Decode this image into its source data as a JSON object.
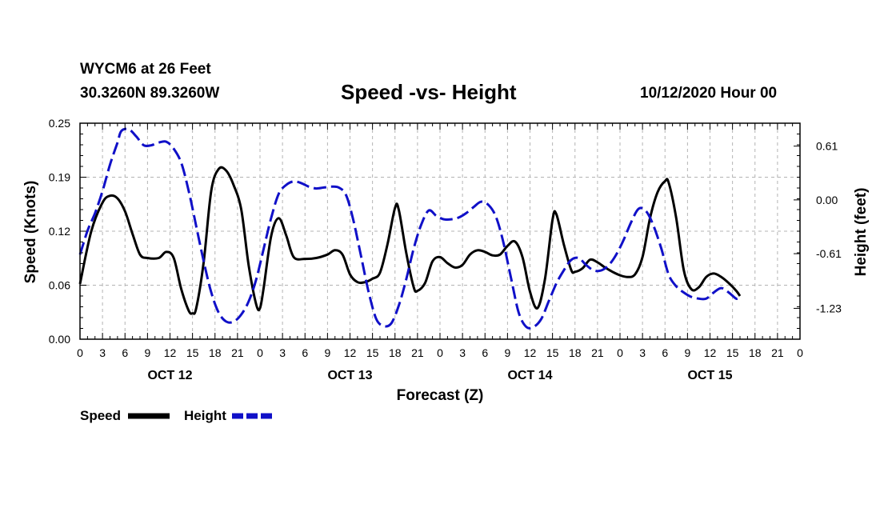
{
  "header": {
    "station": "WYCM6 at 26 Feet",
    "coords": "30.3260N 89.3260W",
    "title": "Speed -vs- Height",
    "run_time": "10/12/2020 Hour 00"
  },
  "colors": {
    "speed": "#000000",
    "height": "#1010c8",
    "grid": "#b4b4b4"
  },
  "chart_data": {
    "type": "line",
    "title": "Speed -vs- Height",
    "xlabel": "Forecast (Z)",
    "ylabel": "Speed (Knots)",
    "ylabel_right": "Height (feet)",
    "x_range_hours": [
      0,
      96
    ],
    "ylim": [
      0,
      0.25
    ],
    "ylim_right": [
      -1.58,
      0.87
    ],
    "yticks": [
      "0.00",
      "0.06",
      "0.12",
      "0.19",
      "0.25"
    ],
    "yticks_right": [
      "0.61",
      "0.00",
      "-0.61",
      "-1.23"
    ],
    "ytick_values_right": [
      0.61,
      0.0,
      -0.61,
      -1.23
    ],
    "xtick_labels": [
      "0",
      "3",
      "6",
      "9",
      "12",
      "15",
      "18",
      "21",
      "0",
      "3",
      "6",
      "9",
      "12",
      "15",
      "18",
      "21",
      "0",
      "3",
      "6",
      "9",
      "12",
      "15",
      "18",
      "21",
      "0",
      "3",
      "6",
      "9",
      "12",
      "15",
      "18",
      "21",
      "0"
    ],
    "date_labels": [
      {
        "label": "OCT 12",
        "hour": 12
      },
      {
        "label": "OCT 13",
        "hour": 36
      },
      {
        "label": "OCT 14",
        "hour": 60
      },
      {
        "label": "OCT 15",
        "hour": 84
      }
    ],
    "grid": true,
    "legend_position": "bottom-left",
    "series": [
      {
        "name": "Speed",
        "axis": "left",
        "style": "solid",
        "points": [
          [
            0,
            0.064
          ],
          [
            1.5,
            0.125
          ],
          [
            3,
            0.158
          ],
          [
            4,
            0.166
          ],
          [
            5,
            0.163
          ],
          [
            6,
            0.148
          ],
          [
            7,
            0.122
          ],
          [
            8,
            0.098
          ],
          [
            9,
            0.094
          ],
          [
            10.5,
            0.094
          ],
          [
            11.5,
            0.101
          ],
          [
            12.5,
            0.094
          ],
          [
            13.5,
            0.058
          ],
          [
            14.5,
            0.033
          ],
          [
            15,
            0.03
          ],
          [
            15.5,
            0.036
          ],
          [
            16.5,
            0.09
          ],
          [
            17.5,
            0.172
          ],
          [
            18.5,
            0.197
          ],
          [
            19.5,
            0.195
          ],
          [
            20.5,
            0.178
          ],
          [
            21.5,
            0.15
          ],
          [
            22.5,
            0.085
          ],
          [
            23.5,
            0.04
          ],
          [
            24,
            0.036
          ],
          [
            24.5,
            0.06
          ],
          [
            25.5,
            0.12
          ],
          [
            26.5,
            0.14
          ],
          [
            27.5,
            0.12
          ],
          [
            28.5,
            0.095
          ],
          [
            30,
            0.093
          ],
          [
            31.5,
            0.094
          ],
          [
            33,
            0.098
          ],
          [
            34,
            0.103
          ],
          [
            35,
            0.098
          ],
          [
            36,
            0.075
          ],
          [
            37,
            0.066
          ],
          [
            38,
            0.066
          ],
          [
            39,
            0.07
          ],
          [
            40,
            0.077
          ],
          [
            41,
            0.11
          ],
          [
            42,
            0.152
          ],
          [
            42.5,
            0.15
          ],
          [
            43.5,
            0.1
          ],
          [
            44.5,
            0.06
          ],
          [
            45,
            0.056
          ],
          [
            46,
            0.065
          ],
          [
            47,
            0.09
          ],
          [
            48,
            0.095
          ],
          [
            49,
            0.088
          ],
          [
            50,
            0.083
          ],
          [
            51,
            0.086
          ],
          [
            52,
            0.098
          ],
          [
            53,
            0.103
          ],
          [
            54,
            0.101
          ],
          [
            55,
            0.097
          ],
          [
            56,
            0.098
          ],
          [
            57,
            0.108
          ],
          [
            58,
            0.113
          ],
          [
            59,
            0.095
          ],
          [
            60,
            0.055
          ],
          [
            61,
            0.036
          ],
          [
            62,
            0.07
          ],
          [
            63,
            0.138
          ],
          [
            63.5,
            0.145
          ],
          [
            64.5,
            0.11
          ],
          [
            65.5,
            0.08
          ],
          [
            66,
            0.078
          ],
          [
            67,
            0.082
          ],
          [
            68,
            0.092
          ],
          [
            69,
            0.089
          ],
          [
            70,
            0.083
          ],
          [
            71,
            0.078
          ],
          [
            72,
            0.074
          ],
          [
            73,
            0.072
          ],
          [
            74,
            0.075
          ],
          [
            75,
            0.095
          ],
          [
            76,
            0.14
          ],
          [
            77,
            0.17
          ],
          [
            78,
            0.183
          ],
          [
            78.5,
            0.181
          ],
          [
            79.5,
            0.14
          ],
          [
            80.5,
            0.08
          ],
          [
            81.5,
            0.058
          ],
          [
            82.5,
            0.06
          ],
          [
            83.5,
            0.072
          ],
          [
            84.5,
            0.076
          ],
          [
            85.5,
            0.072
          ],
          [
            86.5,
            0.065
          ],
          [
            87.5,
            0.056
          ],
          [
            88,
            0.05
          ]
        ]
      },
      {
        "name": "Height",
        "axis": "right",
        "style": "dashed",
        "points": [
          [
            0,
            -0.62
          ],
          [
            1,
            -0.35
          ],
          [
            2,
            -0.15
          ],
          [
            3,
            0.1
          ],
          [
            4,
            0.4
          ],
          [
            5,
            0.65
          ],
          [
            5.5,
            0.78
          ],
          [
            6.5,
            0.8
          ],
          [
            7.5,
            0.72
          ],
          [
            8.5,
            0.62
          ],
          [
            9.5,
            0.62
          ],
          [
            10.5,
            0.65
          ],
          [
            11.5,
            0.66
          ],
          [
            12.5,
            0.58
          ],
          [
            13.5,
            0.42
          ],
          [
            14.5,
            0.1
          ],
          [
            15.5,
            -0.3
          ],
          [
            16.5,
            -0.7
          ],
          [
            17.5,
            -1.05
          ],
          [
            18.5,
            -1.28
          ],
          [
            19.5,
            -1.38
          ],
          [
            20.5,
            -1.38
          ],
          [
            21.5,
            -1.3
          ],
          [
            22.5,
            -1.15
          ],
          [
            23.5,
            -0.9
          ],
          [
            24.5,
            -0.55
          ],
          [
            25.5,
            -0.2
          ],
          [
            26.5,
            0.07
          ],
          [
            27.5,
            0.17
          ],
          [
            28.5,
            0.21
          ],
          [
            29.5,
            0.19
          ],
          [
            30.5,
            0.15
          ],
          [
            31.5,
            0.13
          ],
          [
            32.5,
            0.14
          ],
          [
            33.5,
            0.15
          ],
          [
            34.5,
            0.14
          ],
          [
            35.5,
            0.05
          ],
          [
            36.5,
            -0.25
          ],
          [
            37.5,
            -0.65
          ],
          [
            38.5,
            -1.05
          ],
          [
            39.5,
            -1.35
          ],
          [
            40.5,
            -1.43
          ],
          [
            41.5,
            -1.4
          ],
          [
            42.5,
            -1.2
          ],
          [
            43.5,
            -0.9
          ],
          [
            44.5,
            -0.55
          ],
          [
            45.5,
            -0.28
          ],
          [
            46.5,
            -0.12
          ],
          [
            47.5,
            -0.18
          ],
          [
            48.5,
            -0.22
          ],
          [
            49.5,
            -0.22
          ],
          [
            50.5,
            -0.2
          ],
          [
            51.5,
            -0.15
          ],
          [
            52.5,
            -0.08
          ],
          [
            53.5,
            -0.02
          ],
          [
            54.5,
            -0.06
          ],
          [
            55.5,
            -0.2
          ],
          [
            56.5,
            -0.5
          ],
          [
            57.5,
            -0.9
          ],
          [
            58.5,
            -1.28
          ],
          [
            59.5,
            -1.44
          ],
          [
            60.5,
            -1.44
          ],
          [
            61.5,
            -1.35
          ],
          [
            62.5,
            -1.15
          ],
          [
            63.5,
            -0.95
          ],
          [
            64.5,
            -0.8
          ],
          [
            65.5,
            -0.68
          ],
          [
            66.5,
            -0.66
          ],
          [
            67.5,
            -0.74
          ],
          [
            68.5,
            -0.8
          ],
          [
            69.5,
            -0.8
          ],
          [
            70.5,
            -0.74
          ],
          [
            71.5,
            -0.62
          ],
          [
            72.5,
            -0.45
          ],
          [
            73.5,
            -0.25
          ],
          [
            74.5,
            -0.1
          ],
          [
            75.5,
            -0.13
          ],
          [
            76.5,
            -0.3
          ],
          [
            77.5,
            -0.55
          ],
          [
            78.5,
            -0.85
          ],
          [
            79.5,
            -0.98
          ],
          [
            80.5,
            -1.05
          ],
          [
            81.5,
            -1.1
          ],
          [
            82.5,
            -1.12
          ],
          [
            83.5,
            -1.12
          ],
          [
            84.5,
            -1.05
          ],
          [
            85.5,
            -1.0
          ],
          [
            86.5,
            -1.05
          ],
          [
            87.5,
            -1.12
          ],
          [
            88,
            -1.1
          ]
        ]
      }
    ]
  },
  "axis_titles": {
    "x": "Forecast (Z)",
    "y_left": "Speed (Knots)",
    "y_right": "Height (feet)"
  },
  "legend": {
    "speed_label": "Speed",
    "height_label": "Height"
  }
}
